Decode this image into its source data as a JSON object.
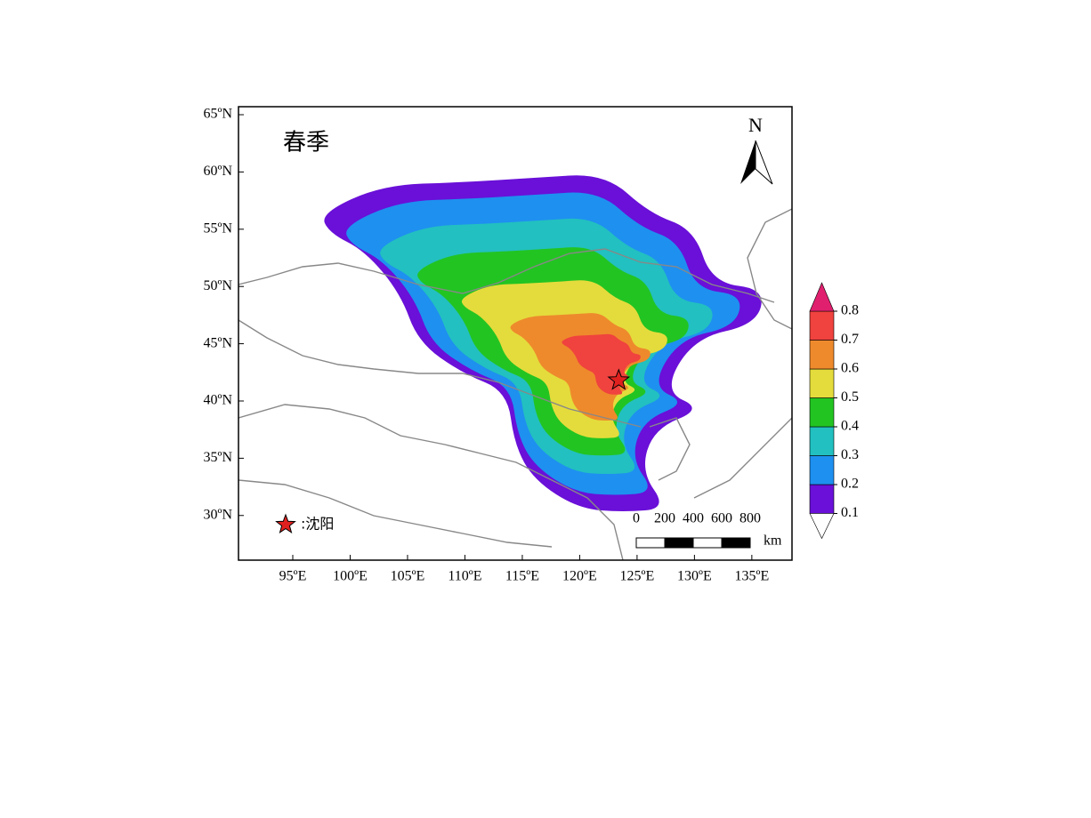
{
  "title": "春季",
  "xlim": [
    90.27,
    138.5
  ],
  "ylim": [
    26.1,
    65.7
  ],
  "xticks": [
    {
      "value": 95,
      "label": "95ºE"
    },
    {
      "value": 100,
      "label": "100ºE"
    },
    {
      "value": 105,
      "label": "105ºE"
    },
    {
      "value": 110,
      "label": "110ºE"
    },
    {
      "value": 115,
      "label": "115ºE"
    },
    {
      "value": 120,
      "label": "120ºE"
    },
    {
      "value": 125,
      "label": "125ºE"
    },
    {
      "value": 130,
      "label": "130ºE"
    },
    {
      "value": 135,
      "label": "135ºE"
    }
  ],
  "yticks": [
    {
      "value": 30,
      "label": "30ºN"
    },
    {
      "value": 35,
      "label": "35ºN"
    },
    {
      "value": 40,
      "label": "40ºN"
    },
    {
      "value": 45,
      "label": "45ºN"
    },
    {
      "value": 50,
      "label": "50ºN"
    },
    {
      "value": 55,
      "label": "55ºN"
    },
    {
      "value": 60,
      "label": "60ºN"
    },
    {
      "value": 65,
      "label": "65ºN"
    }
  ],
  "colorbar": {
    "levels": [
      0.1,
      0.2,
      0.3,
      0.4,
      0.5,
      0.6,
      0.7,
      0.8
    ],
    "colors": [
      "#6a10d8",
      "#1e90f0",
      "#22c0c0",
      "#22c422",
      "#e4dc3c",
      "#ee8a2c",
      "#f0423e",
      "#e0206e"
    ]
  },
  "marker": {
    "lon": 123.4,
    "lat": 41.8,
    "color": "#e0201e"
  },
  "legend": {
    "label": ":沈阳"
  },
  "north": "N",
  "scale_bar": {
    "ticks": [
      0,
      200,
      400,
      600,
      800
    ],
    "unit": "km"
  }
}
